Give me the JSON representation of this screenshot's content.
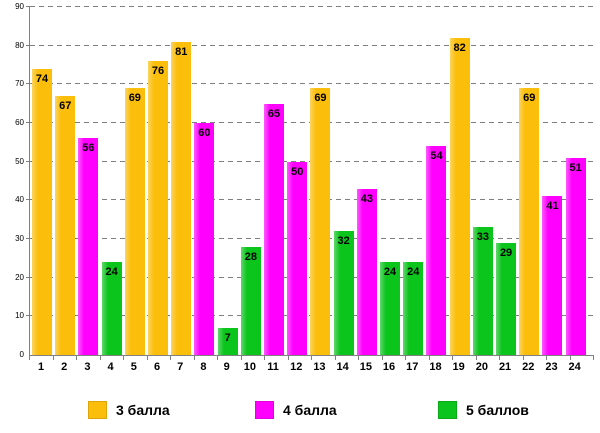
{
  "chart_data": {
    "type": "bar",
    "title": "",
    "xlabel": "",
    "ylabel": "",
    "categories": [
      "1",
      "2",
      "3",
      "4",
      "5",
      "6",
      "7",
      "8",
      "9",
      "10",
      "11",
      "12",
      "13",
      "14",
      "15",
      "16",
      "17",
      "18",
      "19",
      "20",
      "21",
      "22",
      "23",
      "24"
    ],
    "values": [
      74,
      67,
      56,
      24,
      69,
      76,
      81,
      60,
      7,
      28,
      65,
      50,
      69,
      32,
      43,
      24,
      24,
      54,
      82,
      33,
      29,
      69,
      41,
      51
    ],
    "bar_series": [
      "3 балла",
      "3 балла",
      "4 балла",
      "5 баллов",
      "3 балла",
      "3 балла",
      "3 балла",
      "4 балла",
      "5 баллов",
      "5 баллов",
      "4 балла",
      "4 балла",
      "3 балла",
      "5 баллов",
      "4 балла",
      "5 баллов",
      "5 баллов",
      "4 балла",
      "3 балла",
      "5 баллов",
      "5 баллов",
      "3 балла",
      "4 балла",
      "4 балла"
    ],
    "series_colors": {
      "3 балла": "#FBBE0B",
      "4 балла": "#FF00FF",
      "5 баллов": "#0BC41C"
    },
    "legend": [
      {
        "label": "3 балла",
        "color": "#FBBE0B"
      },
      {
        "label": "4 балла",
        "color": "#FF00FF"
      },
      {
        "label": "5 баллов",
        "color": "#0BC41C"
      }
    ],
    "legend_position": "bottom",
    "ylim": [
      0,
      90
    ],
    "yticks": [
      0,
      10,
      20,
      30,
      40,
      50,
      60,
      70,
      80,
      90
    ],
    "grid": "horizontal-dashed",
    "gridline_color": "#7f7f7f",
    "value_labels": "inside-top"
  }
}
